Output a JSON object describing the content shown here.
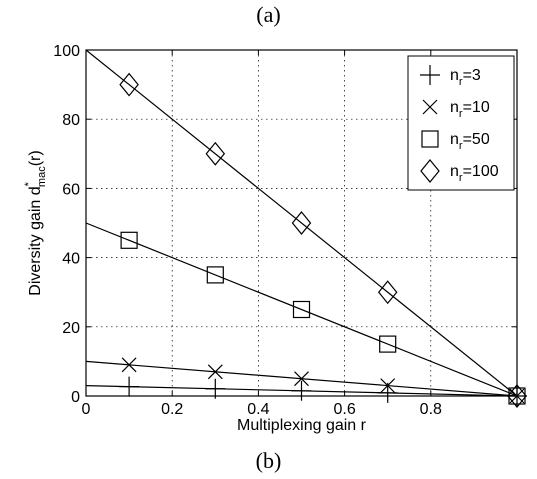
{
  "captions": {
    "top": "(a)",
    "bottom": "(b)"
  },
  "chart_data": {
    "type": "line",
    "xlabel": "Multiplexing gain r",
    "ylabel_prefix": "Diversity gain d",
    "ylabel_sup": "*",
    "ylabel_sub": "mac",
    "ylabel_suffix": "(r)",
    "xlim": [
      0,
      1
    ],
    "ylim": [
      0,
      100
    ],
    "xticks": [
      0,
      0.2,
      0.4,
      0.6,
      0.8
    ],
    "xtick_labels": [
      "0",
      "0.2",
      "0.4",
      "0.6",
      "0.8"
    ],
    "yticks": [
      0,
      20,
      40,
      60,
      80,
      100
    ],
    "ytick_labels": [
      "0",
      "20",
      "40",
      "60",
      "80",
      "100"
    ],
    "grid": true,
    "legend_position": "top-right",
    "series": [
      {
        "label_base": "n",
        "label_sub": "r",
        "label_rest": "=3",
        "marker": "plus",
        "line": [
          [
            0,
            3
          ],
          [
            1,
            0
          ]
        ],
        "points": [
          [
            0.1,
            2.7
          ],
          [
            0.3,
            2.1
          ],
          [
            0.5,
            1.5
          ],
          [
            0.7,
            0.9
          ],
          [
            1,
            0
          ]
        ]
      },
      {
        "label_base": "n",
        "label_sub": "r",
        "label_rest": "=10",
        "marker": "x",
        "line": [
          [
            0,
            10
          ],
          [
            1,
            0
          ]
        ],
        "points": [
          [
            0.1,
            9
          ],
          [
            0.3,
            7
          ],
          [
            0.5,
            5
          ],
          [
            0.7,
            3
          ],
          [
            1,
            0
          ]
        ]
      },
      {
        "label_base": "n",
        "label_sub": "r",
        "label_rest": "=50",
        "marker": "square",
        "line": [
          [
            0,
            50
          ],
          [
            1,
            0
          ]
        ],
        "points": [
          [
            0.1,
            45
          ],
          [
            0.3,
            35
          ],
          [
            0.5,
            25
          ],
          [
            0.7,
            15
          ],
          [
            1,
            0
          ]
        ]
      },
      {
        "label_base": "n",
        "label_sub": "r",
        "label_rest": "=100",
        "marker": "diamond",
        "line": [
          [
            0,
            100
          ],
          [
            1,
            0
          ]
        ],
        "points": [
          [
            0.1,
            90
          ],
          [
            0.3,
            70
          ],
          [
            0.5,
            50
          ],
          [
            0.7,
            30
          ],
          [
            1,
            0
          ]
        ]
      }
    ]
  }
}
